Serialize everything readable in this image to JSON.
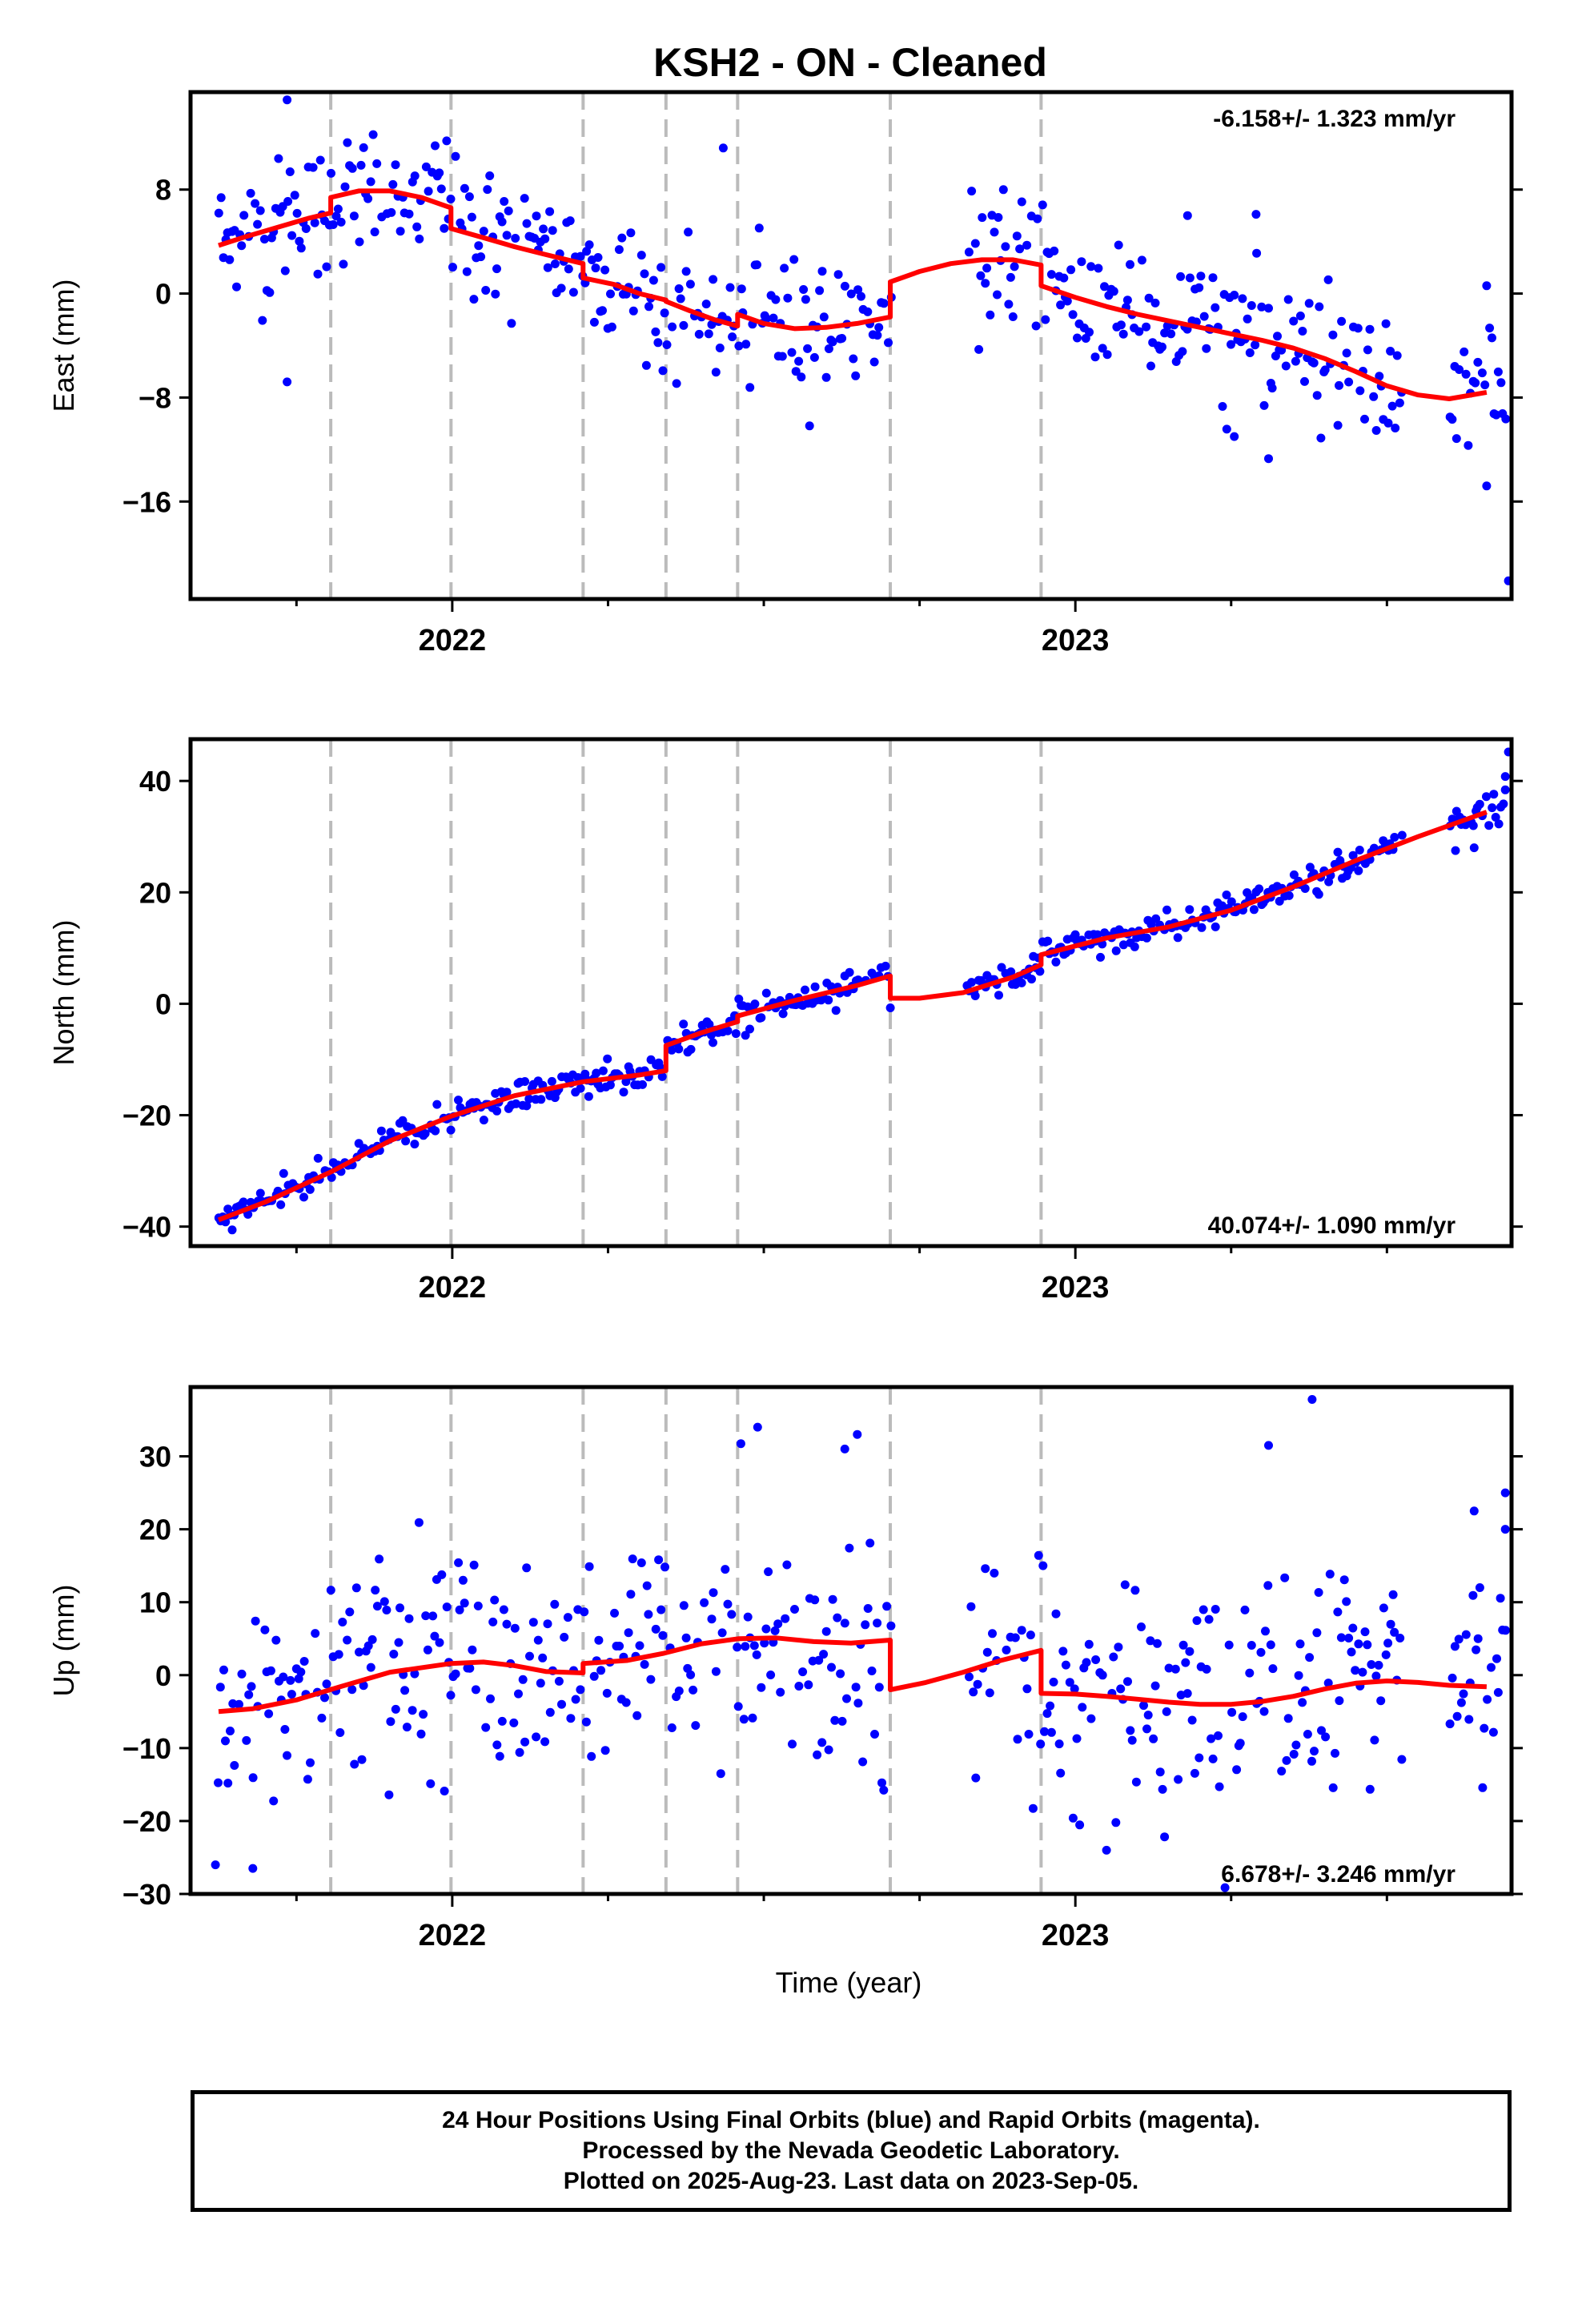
{
  "title": "KSH2  - ON - Cleaned",
  "xlabel": "Time (year)",
  "footer": {
    "line1": "24 Hour Positions Using Final Orbits (blue) and Rapid Orbits (magenta).",
    "line2": "Processed by the Nevada Geodetic Laboratory.",
    "line3": "Plotted on 2025-Aug-23. Last data on 2023-Sep-05."
  },
  "colors": {
    "data": "#0000ff",
    "model": "#ff0000",
    "steps": "#bbbbbb",
    "frame": "#000000"
  },
  "chart_data": [
    {
      "type": "scatter",
      "name": "east",
      "ylabel": "East (mm)",
      "rate_label": "-6.158+/- 1.323 mm/yr",
      "xlim": [
        2021.58,
        2023.7
      ],
      "ylim": [
        -23.5,
        15.5
      ],
      "yticks": [
        8,
        0,
        -8,
        -16
      ],
      "xticks": [
        2022,
        2023
      ],
      "xminor_ticks": [
        2021.75,
        2022.25,
        2022.5,
        2022.75,
        2023.25,
        2023.5
      ],
      "step_epochs": [
        2021.805,
        2021.998,
        2022.21,
        2022.343,
        2022.458,
        2022.703,
        2022.945
      ],
      "gaps": [
        [
          2022.705,
          2022.825
        ],
        [
          2023.525,
          2023.6
        ]
      ],
      "model": {
        "x": [
          2021.625,
          2021.67,
          2021.72,
          2021.77,
          2021.805,
          2021.805,
          2021.85,
          2021.9,
          2021.95,
          2021.998,
          2021.998,
          2022.05,
          2022.1,
          2022.15,
          2022.21,
          2022.21,
          2022.26,
          2022.3,
          2022.343,
          2022.343,
          2022.38,
          2022.42,
          2022.458,
          2022.458,
          2022.5,
          2022.55,
          2022.6,
          2022.65,
          2022.703,
          2022.703,
          2022.75,
          2022.8,
          2022.85,
          2022.9,
          2022.945,
          2022.945,
          2023.0,
          2023.05,
          2023.1,
          2023.15,
          2023.2,
          2023.25,
          2023.3,
          2023.35,
          2023.4,
          2023.45,
          2023.5,
          2023.55,
          2023.6,
          2023.66
        ],
        "y": [
          3.7,
          4.4,
          5.1,
          5.8,
          6.2,
          7.4,
          7.9,
          7.9,
          7.4,
          6.6,
          5.0,
          4.3,
          3.6,
          3.0,
          2.3,
          1.2,
          0.7,
          0.0,
          -0.5,
          -0.6,
          -1.3,
          -2.0,
          -2.5,
          -1.6,
          -2.3,
          -2.7,
          -2.6,
          -2.3,
          -1.8,
          0.9,
          1.7,
          2.3,
          2.6,
          2.6,
          2.2,
          0.6,
          -0.3,
          -1.0,
          -1.6,
          -2.1,
          -2.6,
          -3.1,
          -3.6,
          -4.2,
          -5.0,
          -6.0,
          -7.1,
          -7.8,
          -8.1,
          -7.6
        ]
      },
      "rms": 2.6,
      "outliers": [
        [
          2021.735,
          14.9
        ],
        [
          2021.735,
          -6.8
        ],
        [
          2022.435,
          11.2
        ],
        [
          2022.845,
          -4.3
        ],
        [
          2023.29,
          6.1
        ],
        [
          2023.18,
          6.0
        ],
        [
          2023.255,
          -11.0
        ],
        [
          2023.31,
          -12.7
        ],
        [
          2023.66,
          -14.8
        ],
        [
          2023.695,
          -22.1
        ],
        [
          2023.66,
          0.6
        ]
      ]
    },
    {
      "type": "scatter",
      "name": "north",
      "ylabel": "North (mm)",
      "rate_label": "40.074+/- 1.090 mm/yr",
      "xlim": [
        2021.58,
        2023.7
      ],
      "ylim": [
        -43.5,
        47.5
      ],
      "yticks": [
        40,
        20,
        0,
        -20,
        -40
      ],
      "xticks": [
        2022,
        2023
      ],
      "xminor_ticks": [
        2021.75,
        2022.25,
        2022.5,
        2022.75,
        2023.25,
        2023.5
      ],
      "step_epochs": [
        2021.805,
        2021.998,
        2022.21,
        2022.343,
        2022.458,
        2022.703,
        2022.945
      ],
      "gaps": [
        [
          2022.705,
          2022.825
        ],
        [
          2023.525,
          2023.6
        ]
      ],
      "model": {
        "x": [
          2021.625,
          2021.7,
          2021.805,
          2021.9,
          2021.998,
          2022.1,
          2022.21,
          2022.3,
          2022.343,
          2022.343,
          2022.4,
          2022.458,
          2022.458,
          2022.55,
          2022.65,
          2022.703,
          2022.703,
          2022.75,
          2022.82,
          2022.9,
          2022.945,
          2022.945,
          2023.05,
          2023.15,
          2023.25,
          2023.35,
          2023.45,
          2023.55,
          2023.66
        ],
        "y": [
          -38.8,
          -35.6,
          -30.2,
          -24.6,
          -20.2,
          -16.5,
          -14.0,
          -12.8,
          -12.0,
          -7.5,
          -5.2,
          -3.2,
          -2.2,
          0.6,
          3.3,
          5.0,
          1.0,
          1.0,
          2.0,
          4.8,
          7.0,
          8.8,
          11.8,
          13.8,
          16.8,
          21.0,
          25.7,
          30.0,
          34.4
        ]
      },
      "rms": 1.3,
      "outliers": [
        [
          2023.695,
          45.2
        ],
        [
          2023.69,
          40.8
        ],
        [
          2023.69,
          38.4
        ],
        [
          2023.64,
          28.0
        ],
        [
          2023.61,
          27.5
        ]
      ]
    },
    {
      "type": "scatter",
      "name": "up",
      "ylabel": "Up (mm)",
      "rate_label": "6.678+/- 3.246 mm/yr",
      "xlim": [
        2021.58,
        2023.7
      ],
      "ylim": [
        -30,
        39.5
      ],
      "yticks": [
        30,
        20,
        10,
        0,
        -10,
        -20,
        -30
      ],
      "xticks": [
        2022,
        2023
      ],
      "xminor_ticks": [
        2021.75,
        2022.25,
        2022.5,
        2022.75,
        2023.25,
        2023.5
      ],
      "step_epochs": [
        2021.805,
        2021.998,
        2022.21,
        2022.343,
        2022.458,
        2022.703,
        2022.945
      ],
      "gaps": [
        [
          2022.705,
          2022.825
        ],
        [
          2023.525,
          2023.6
        ]
      ],
      "model": {
        "x": [
          2021.625,
          2021.68,
          2021.75,
          2021.82,
          2021.9,
          2021.998,
          2022.05,
          2022.1,
          2022.15,
          2022.21,
          2022.21,
          2022.28,
          2022.34,
          2022.4,
          2022.46,
          2022.52,
          2022.58,
          2022.64,
          2022.703,
          2022.703,
          2022.76,
          2022.82,
          2022.88,
          2022.945,
          2022.945,
          2023.0,
          2023.05,
          2023.1,
          2023.15,
          2023.2,
          2023.25,
          2023.3,
          2023.35,
          2023.4,
          2023.45,
          2023.5,
          2023.55,
          2023.6,
          2023.66
        ],
        "y": [
          -5.0,
          -4.6,
          -3.4,
          -1.6,
          0.4,
          1.6,
          1.8,
          1.3,
          0.5,
          0.3,
          1.6,
          2.0,
          3.0,
          4.3,
          5.0,
          5.1,
          4.6,
          4.4,
          4.8,
          -2.0,
          -1.0,
          0.4,
          2.0,
          3.4,
          -2.5,
          -2.6,
          -2.9,
          -3.3,
          -3.7,
          -4.0,
          -4.0,
          -3.6,
          -2.9,
          -1.9,
          -1.1,
          -0.8,
          -1.0,
          -1.4,
          -1.6
        ]
      },
      "rms": 8.0,
      "outliers": [
        [
          2023.38,
          37.8
        ],
        [
          2023.31,
          31.5
        ],
        [
          2022.49,
          34.0
        ],
        [
          2022.65,
          33.0
        ],
        [
          2022.63,
          31.0
        ],
        [
          2021.62,
          -26.0
        ],
        [
          2021.68,
          -26.5
        ],
        [
          2023.05,
          -24.0
        ],
        [
          2023.69,
          25.0
        ],
        [
          2023.69,
          20.0
        ],
        [
          2023.64,
          22.5
        ]
      ]
    }
  ]
}
